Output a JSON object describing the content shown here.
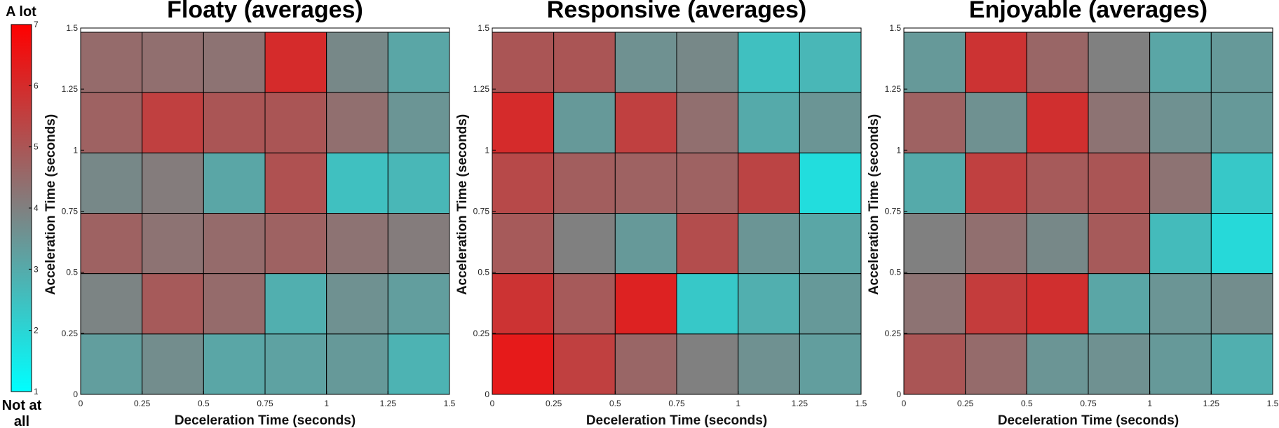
{
  "colors": {
    "low": "#00ffff",
    "mid": "#808080",
    "high": "#ff0000",
    "grid": "#000000",
    "background": "#ffffff"
  },
  "colorbar": {
    "top_label": "A lot",
    "bottom_label_line1": "Not at",
    "bottom_label_line2": "all",
    "ticks": [
      "1",
      "2",
      "3",
      "4",
      "5",
      "6",
      "7"
    ],
    "range": [
      1,
      7
    ]
  },
  "chart_data": [
    {
      "type": "heatmap",
      "title": "Floaty (averages)",
      "xlabel": "Deceleration Time (seconds)",
      "ylabel": "Acceleration Time (seconds)",
      "x_ticks": [
        "0",
        "0.25",
        "0.5",
        "0.75",
        "1",
        "1.25",
        "1.5"
      ],
      "y_ticks": [
        "0",
        "0.25",
        "0.5",
        "0.75",
        "1",
        "1.25",
        "1.5"
      ],
      "xlim": [
        0,
        1.5
      ],
      "ylim": [
        0,
        1.5
      ],
      "clim": [
        1,
        7
      ],
      "rows_top_to_bottom": [
        [
          4.5,
          4.4,
          4.3,
          6.0,
          3.8,
          3.1
        ],
        [
          4.7,
          5.5,
          5.0,
          5.0,
          4.4,
          3.5
        ],
        [
          3.8,
          4.1,
          3.1,
          5.1,
          2.5,
          2.7
        ],
        [
          4.7,
          4.3,
          4.5,
          4.7,
          4.3,
          4.1
        ],
        [
          3.9,
          4.9,
          4.5,
          2.9,
          3.6,
          3.3
        ],
        [
          3.3,
          3.7,
          3.1,
          3.2,
          3.4,
          2.8
        ]
      ]
    },
    {
      "type": "heatmap",
      "title": "Responsive (averages)",
      "xlabel": "Deceleration Time (seconds)",
      "ylabel": "Acceleration Time (seconds)",
      "x_ticks": [
        "0",
        "0.25",
        "0.5",
        "0.75",
        "1",
        "1.25",
        "1.5"
      ],
      "y_ticks": [
        "0",
        "0.25",
        "0.5",
        "0.75",
        "1",
        "1.25",
        "1.5"
      ],
      "xlim": [
        0,
        1.5
      ],
      "ylim": [
        0,
        1.5
      ],
      "clim": [
        1,
        7
      ],
      "rows_top_to_bottom": [
        [
          5.0,
          5.0,
          3.6,
          3.8,
          2.5,
          2.7
        ],
        [
          6.0,
          3.4,
          5.5,
          4.4,
          3.0,
          3.5
        ],
        [
          5.3,
          4.8,
          4.7,
          4.7,
          5.4,
          1.8
        ],
        [
          4.9,
          4.0,
          3.4,
          5.2,
          3.5,
          3.1
        ],
        [
          5.8,
          4.9,
          6.2,
          2.3,
          2.9,
          3.4
        ],
        [
          6.4,
          5.5,
          4.6,
          4.0,
          3.6,
          3.3
        ]
      ]
    },
    {
      "type": "heatmap",
      "title": "Enjoyable (averages)",
      "xlabel": "Deceleration Time (seconds)",
      "ylabel": "Acceleration Time (seconds)",
      "x_ticks": [
        "0",
        "0.25",
        "0.5",
        "0.75",
        "1",
        "1.25",
        "1.5"
      ],
      "y_ticks": [
        "0",
        "0.25",
        "0.5",
        "0.75",
        "1",
        "1.25",
        "1.5"
      ],
      "xlim": [
        0,
        1.5
      ],
      "ylim": [
        0,
        1.5
      ],
      "clim": [
        1,
        7
      ],
      "rows_top_to_bottom": [
        [
          3.4,
          5.8,
          4.6,
          4.0,
          3.1,
          3.4
        ],
        [
          4.7,
          3.6,
          5.9,
          4.3,
          3.6,
          3.4
        ],
        [
          3.0,
          5.5,
          4.9,
          5.0,
          4.3,
          2.3
        ],
        [
          4.0,
          4.4,
          3.8,
          4.9,
          2.6,
          1.9
        ],
        [
          4.3,
          5.6,
          5.9,
          3.1,
          3.5,
          3.7
        ],
        [
          5.0,
          4.5,
          3.5,
          3.6,
          3.4,
          2.9
        ]
      ]
    }
  ]
}
